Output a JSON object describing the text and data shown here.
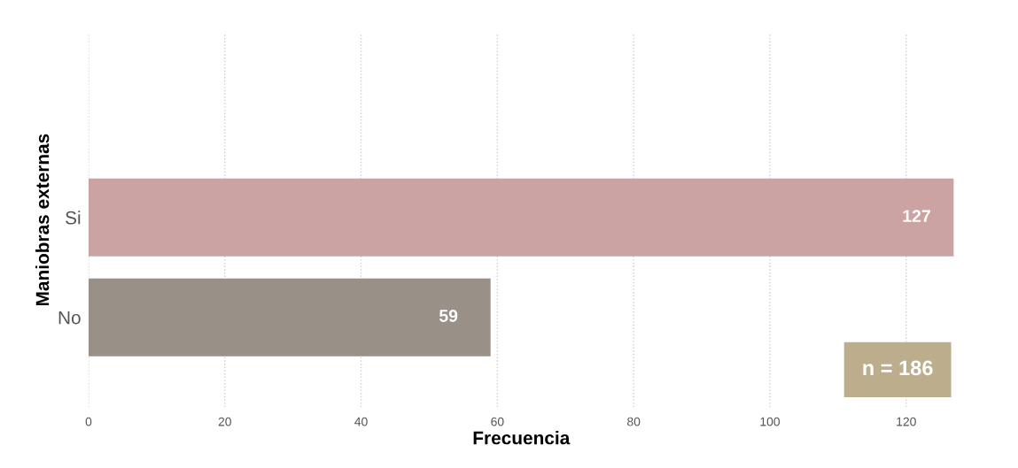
{
  "chart_data": {
    "type": "bar",
    "orientation": "horizontal",
    "ylabel": "Maniobras externas",
    "xlabel": "Frecuencia",
    "categories": [
      "Si",
      "No"
    ],
    "values": [
      127,
      59
    ],
    "colors": [
      "#cca3a3",
      "#999088"
    ],
    "xlim": [
      0,
      127
    ],
    "xticks": [
      0,
      20,
      40,
      60,
      80,
      100,
      120
    ],
    "grid": "x",
    "data_labels": true,
    "annotations": [
      "n = 186"
    ]
  }
}
